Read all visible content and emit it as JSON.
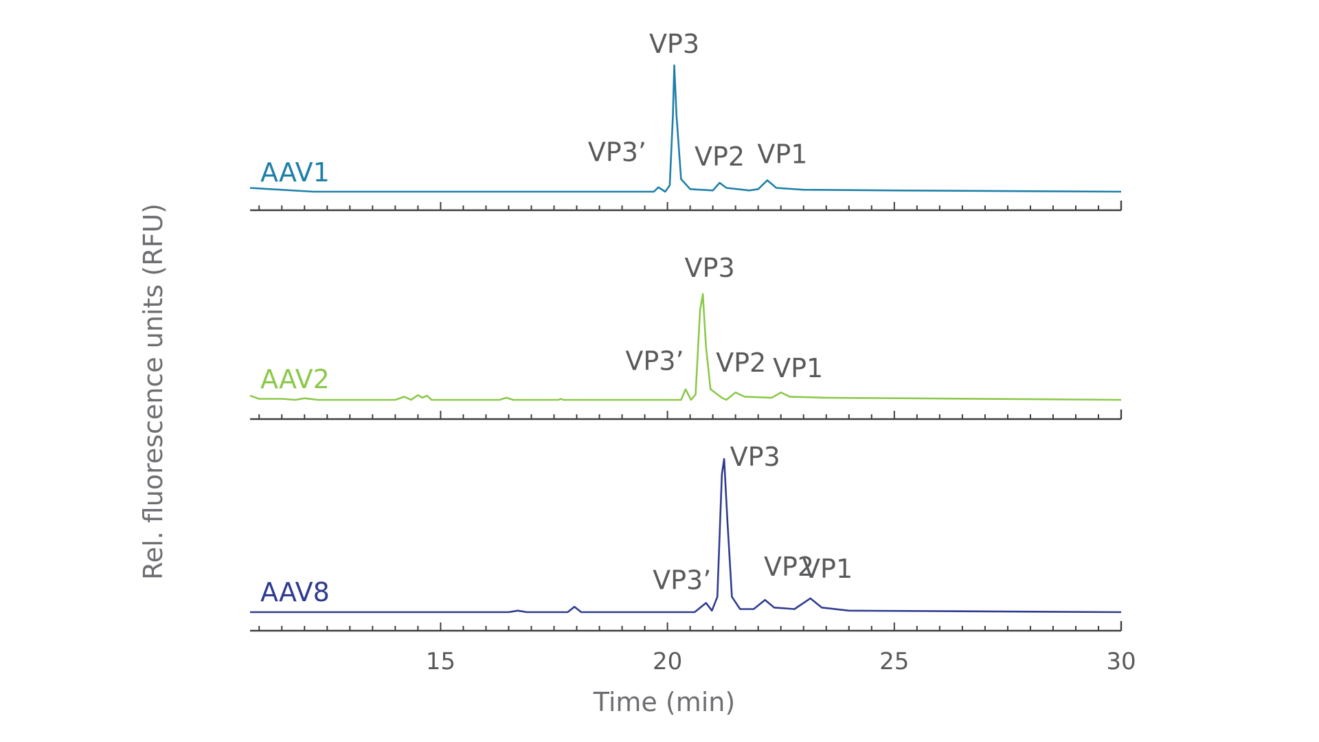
{
  "chart_data": {
    "type": "line",
    "xlabel": "Time (min)",
    "ylabel": "Rel. fluorescence units (RFU)",
    "xlim": [
      10.8,
      30
    ],
    "x_ticks": [
      15,
      20,
      25,
      30
    ],
    "x_minor_step": 0.5,
    "panels": [
      {
        "name": "AAV1",
        "color": "#1e7fa8",
        "points": [
          [
            10.8,
            0.03
          ],
          [
            12.2,
            0.0
          ],
          [
            15,
            0.0
          ],
          [
            18,
            0.0
          ],
          [
            19.7,
            0.0
          ],
          [
            19.8,
            0.035
          ],
          [
            19.95,
            0.0
          ],
          [
            20.05,
            0.05
          ],
          [
            20.12,
            0.6
          ],
          [
            20.15,
            1.0
          ],
          [
            20.2,
            0.6
          ],
          [
            20.3,
            0.1
          ],
          [
            20.5,
            0.02
          ],
          [
            21.0,
            0.01
          ],
          [
            21.15,
            0.07
          ],
          [
            21.3,
            0.03
          ],
          [
            21.8,
            0.01
          ],
          [
            22.0,
            0.02
          ],
          [
            22.2,
            0.09
          ],
          [
            22.4,
            0.03
          ],
          [
            23.0,
            0.015
          ],
          [
            25,
            0.01
          ],
          [
            30,
            0.0
          ]
        ],
        "peaks": [
          {
            "label": "VP3’",
            "x": 19.8,
            "rel": 0.035
          },
          {
            "label": "VP3",
            "x": 20.15,
            "rel": 1.0
          },
          {
            "label": "VP2",
            "x": 21.15,
            "rel": 0.07
          },
          {
            "label": "VP1",
            "x": 22.2,
            "rel": 0.09
          }
        ]
      },
      {
        "name": "AAV2",
        "color": "#8cc84b",
        "points": [
          [
            10.8,
            0.04
          ],
          [
            11.0,
            0.01
          ],
          [
            11.5,
            0.01
          ],
          [
            11.8,
            0.0
          ],
          [
            12.0,
            0.015
          ],
          [
            12.3,
            0.0
          ],
          [
            14.0,
            0.0
          ],
          [
            14.2,
            0.03
          ],
          [
            14.35,
            0.0
          ],
          [
            14.5,
            0.045
          ],
          [
            14.6,
            0.02
          ],
          [
            14.7,
            0.04
          ],
          [
            14.8,
            0.0
          ],
          [
            16.3,
            0.0
          ],
          [
            16.45,
            0.02
          ],
          [
            16.6,
            0.0
          ],
          [
            17.6,
            0.0
          ],
          [
            17.65,
            0.01
          ],
          [
            17.7,
            0.0
          ],
          [
            20.3,
            0.0
          ],
          [
            20.4,
            0.1
          ],
          [
            20.52,
            0.0
          ],
          [
            20.62,
            0.05
          ],
          [
            20.72,
            0.85
          ],
          [
            20.78,
            1.0
          ],
          [
            20.85,
            0.5
          ],
          [
            20.95,
            0.1
          ],
          [
            21.2,
            0.02
          ],
          [
            21.3,
            0.0
          ],
          [
            21.5,
            0.07
          ],
          [
            21.7,
            0.03
          ],
          [
            22.3,
            0.02
          ],
          [
            22.5,
            0.07
          ],
          [
            22.7,
            0.03
          ],
          [
            23.5,
            0.02
          ],
          [
            30,
            0.0
          ]
        ],
        "peaks": [
          {
            "label": "VP3’",
            "x": 20.4,
            "rel": 0.1
          },
          {
            "label": "VP3",
            "x": 20.78,
            "rel": 1.0
          },
          {
            "label": "VP2",
            "x": 21.5,
            "rel": 0.07
          },
          {
            "label": "VP1",
            "x": 22.5,
            "rel": 0.07
          }
        ]
      },
      {
        "name": "AAV8",
        "color": "#2e3b8f",
        "points": [
          [
            10.8,
            0.0
          ],
          [
            16.5,
            0.0
          ],
          [
            16.7,
            0.01
          ],
          [
            16.9,
            0.0
          ],
          [
            17.8,
            0.0
          ],
          [
            17.95,
            0.035
          ],
          [
            18.1,
            0.0
          ],
          [
            20.6,
            0.0
          ],
          [
            20.85,
            0.06
          ],
          [
            20.98,
            0.01
          ],
          [
            21.1,
            0.1
          ],
          [
            21.2,
            0.9
          ],
          [
            21.25,
            1.0
          ],
          [
            21.32,
            0.6
          ],
          [
            21.42,
            0.1
          ],
          [
            21.6,
            0.02
          ],
          [
            21.9,
            0.02
          ],
          [
            22.15,
            0.08
          ],
          [
            22.35,
            0.03
          ],
          [
            22.8,
            0.02
          ],
          [
            23.15,
            0.09
          ],
          [
            23.4,
            0.03
          ],
          [
            24.0,
            0.01
          ],
          [
            30,
            0.0
          ]
        ],
        "peaks": [
          {
            "label": "VP3’",
            "x": 20.85,
            "rel": 0.06
          },
          {
            "label": "VP3",
            "x": 21.25,
            "rel": 1.0
          },
          {
            "label": "VP2",
            "x": 22.15,
            "rel": 0.08
          },
          {
            "label": "VP1",
            "x": 23.15,
            "rel": 0.09
          }
        ]
      }
    ]
  }
}
